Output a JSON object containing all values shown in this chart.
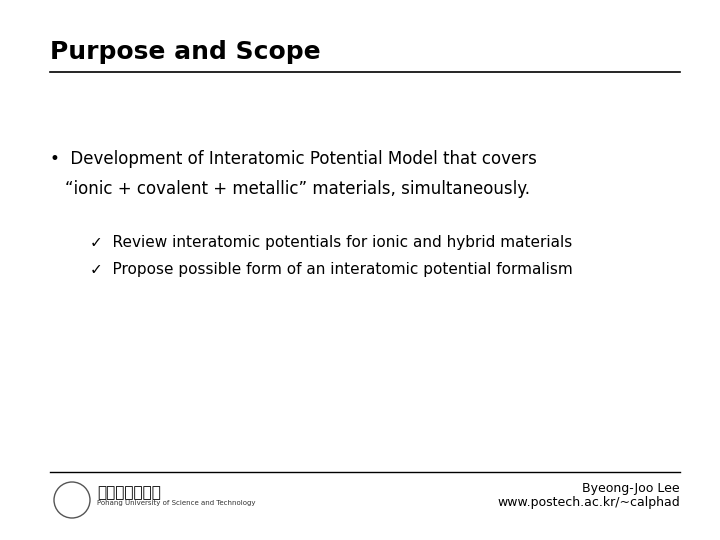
{
  "title": "Purpose and Scope",
  "background_color": "#ffffff",
  "title_color": "#000000",
  "title_fontsize": 18,
  "bullet_text_1": "Development of Interatomic Potential Model that covers",
  "bullet_text_2": "“ionic + covalent + metallic” materials, simultaneously.",
  "check1_text": "Review interatomic potentials for ionic and hybrid materials",
  "check2_text": "Propose possible form of an interatomic potential formalism",
  "check_symbol": "✓",
  "footer_right_text1": "Byeong-Joo Lee",
  "footer_right_text2": "www.postech.ac.kr/~calphad",
  "footer_left_text": "포항공과대학교",
  "text_color": "#000000",
  "body_fontsize": 12,
  "check_fontsize": 11,
  "footer_fontsize": 9
}
